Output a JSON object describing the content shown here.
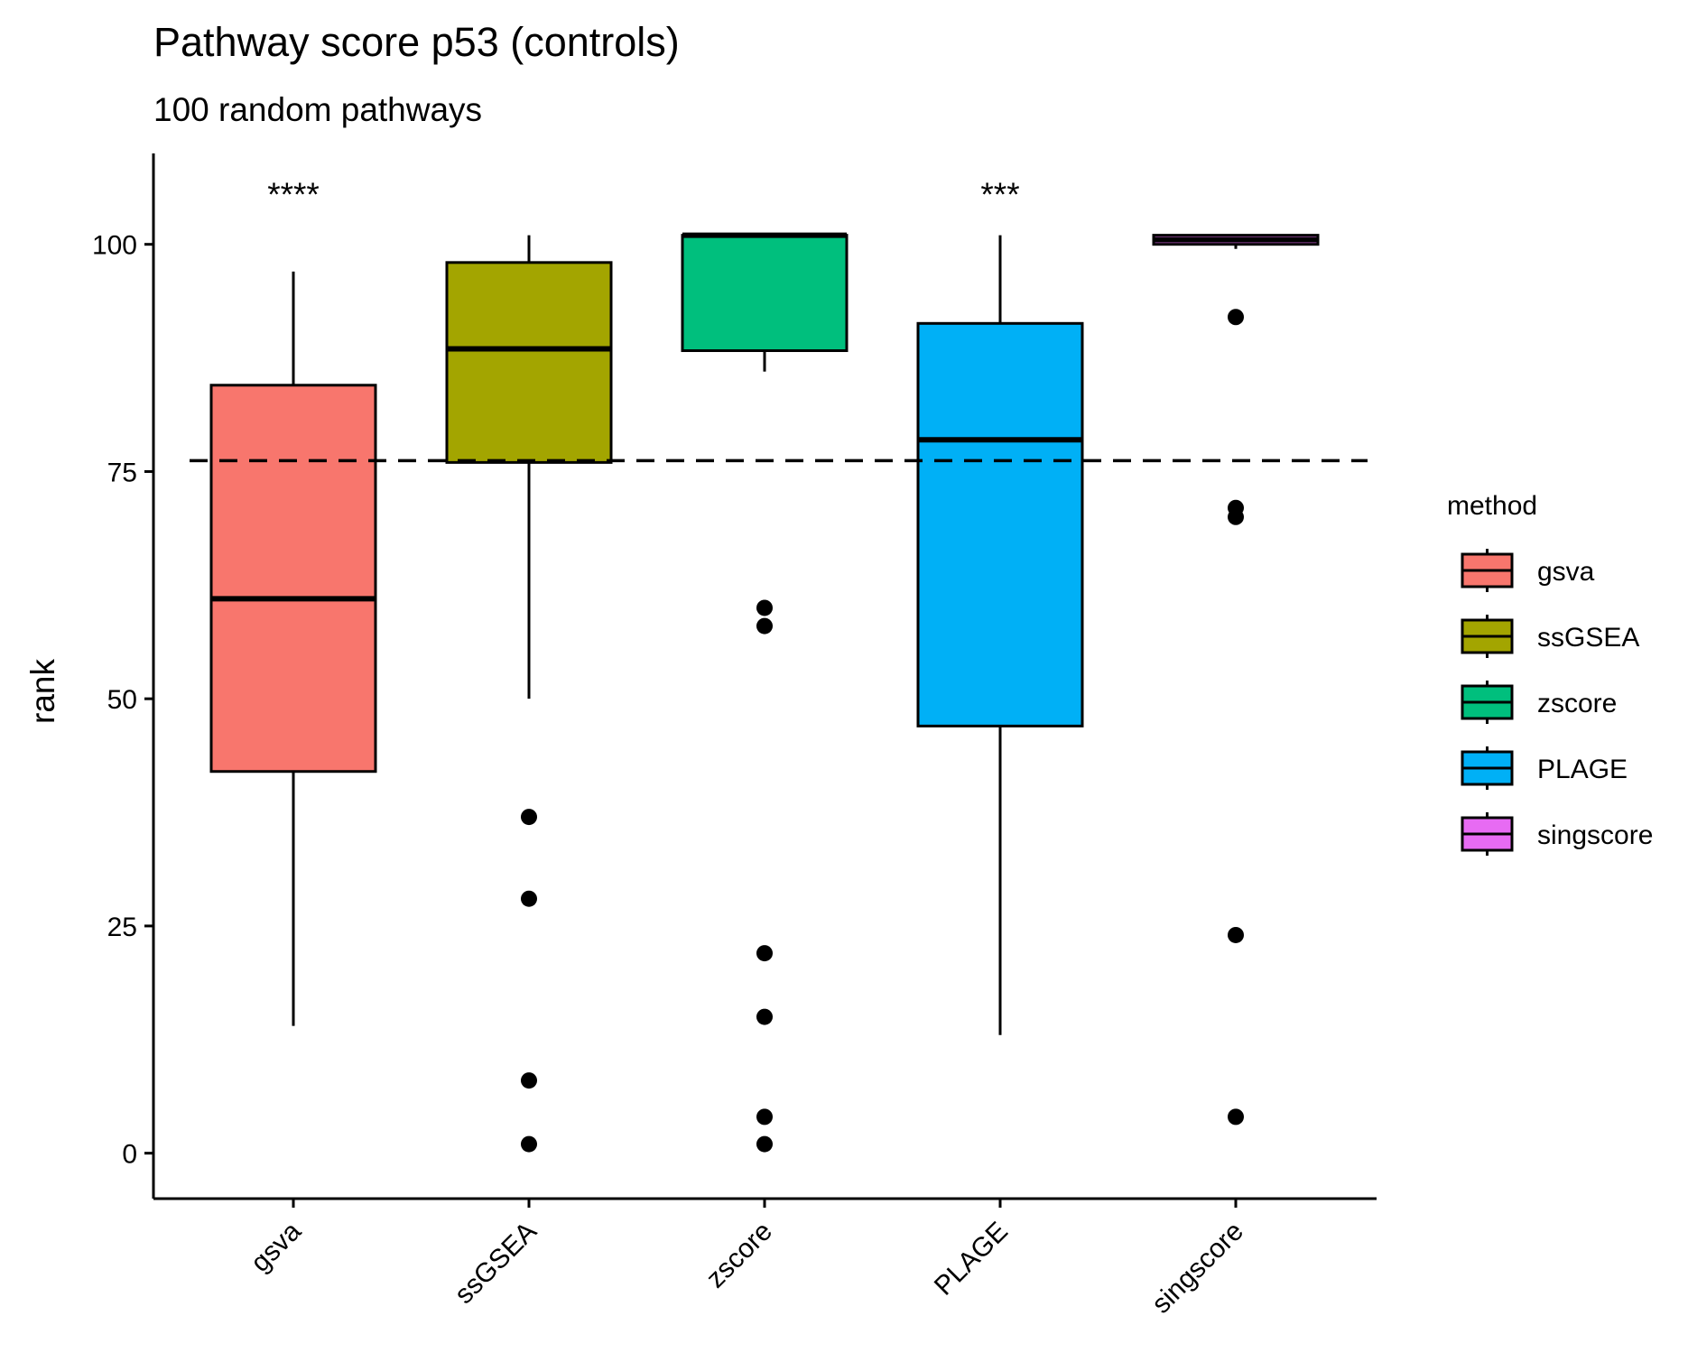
{
  "chart_data": {
    "type": "boxplot",
    "title": "Pathway score p53 (controls)",
    "subtitle": "100 random pathways",
    "xlabel": "",
    "ylabel": "rank",
    "ylim": [
      -5,
      110
    ],
    "yticks": [
      0,
      25,
      50,
      75,
      100
    ],
    "categories": [
      "gsva",
      "ssGSEA",
      "zscore",
      "PLAGE",
      "singscore"
    ],
    "reference_line": {
      "y": 76.2,
      "style": "dashed"
    },
    "legend": {
      "title": "method",
      "placement": "right",
      "entries": [
        "gsva",
        "ssGSEA",
        "zscore",
        "PLAGE",
        "singscore"
      ]
    },
    "grid": false,
    "series": [
      {
        "category": "gsva",
        "color": "#F8766D",
        "whisker_low": 14,
        "q1": 42,
        "median": 61,
        "q3": 84.5,
        "whisker_high": 97,
        "outliers": [],
        "annotation": "****"
      },
      {
        "category": "ssGSEA",
        "color": "#A3A500",
        "whisker_low": 50,
        "q1": 76,
        "median": 88.5,
        "q3": 98,
        "whisker_high": 101,
        "outliers": [
          37,
          28,
          8,
          1
        ],
        "annotation": ""
      },
      {
        "category": "zscore",
        "color": "#00BF7D",
        "whisker_low": 86,
        "q1": 88.3,
        "median": 101,
        "q3": 101,
        "whisker_high": 101,
        "outliers": [
          60,
          58,
          22,
          15,
          4,
          1
        ],
        "annotation": ""
      },
      {
        "category": "PLAGE",
        "color": "#00B0F6",
        "whisker_low": 13,
        "q1": 47,
        "median": 78.5,
        "q3": 91.3,
        "whisker_high": 101,
        "outliers": [],
        "annotation": "***"
      },
      {
        "category": "singscore",
        "color": "#E76BF3",
        "whisker_low": 99.5,
        "q1": 100,
        "median": 100.5,
        "q3": 101,
        "whisker_high": 101,
        "outliers": [
          92,
          71,
          70,
          24,
          4
        ],
        "annotation": ""
      }
    ]
  }
}
